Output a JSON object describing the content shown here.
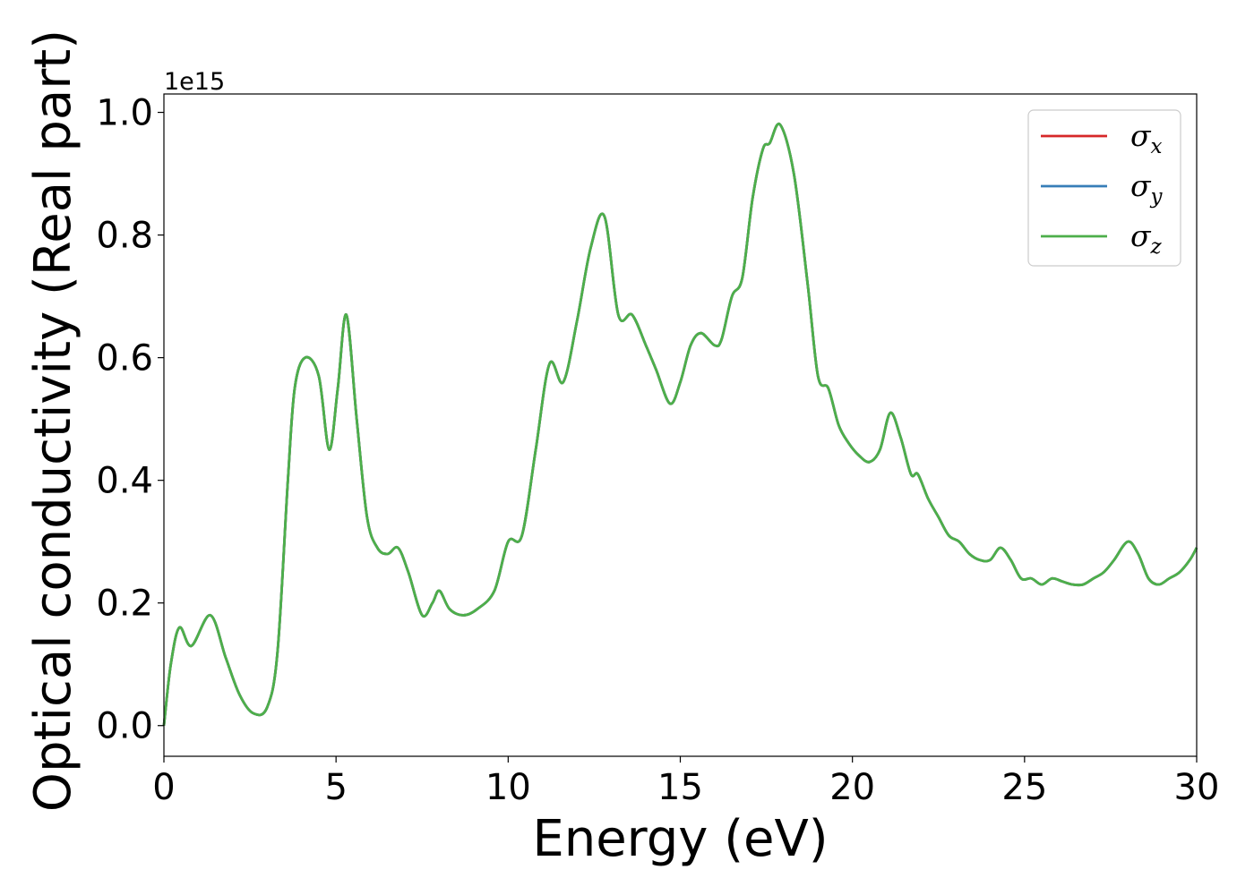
{
  "chart_data": {
    "type": "line",
    "xlabel": "Energy (eV)",
    "ylabel": "Optical conductivity (Real part)",
    "y_offset_text": "1e15",
    "xlim": [
      0,
      30
    ],
    "ylim": [
      -0.05,
      1.03
    ],
    "xticks": [
      0,
      5,
      10,
      15,
      20,
      25,
      30
    ],
    "xtick_labels": [
      "0",
      "5",
      "10",
      "15",
      "20",
      "25",
      "30"
    ],
    "yticks": [
      0.0,
      0.2,
      0.4,
      0.6,
      0.8,
      1.0
    ],
    "ytick_labels": [
      "0.0",
      "0.2",
      "0.4",
      "0.6",
      "0.8",
      "1.0"
    ],
    "grid": false,
    "legend_position": "top-right",
    "series": [
      {
        "name": "σ",
        "subscript": "x",
        "color": "#d62728",
        "ref": "z"
      },
      {
        "name": "σ",
        "subscript": "y",
        "color": "#377eb8",
        "ref": "z"
      },
      {
        "name": "σ",
        "subscript": "z",
        "color": "#4daf4a",
        "x": [
          0,
          0.2,
          0.45,
          0.8,
          1.35,
          1.8,
          2.2,
          2.6,
          3.0,
          3.3,
          3.6,
          3.8,
          4.1,
          4.5,
          4.8,
          5.05,
          5.3,
          5.6,
          5.9,
          6.2,
          6.5,
          6.8,
          7.1,
          7.5,
          7.8,
          8.0,
          8.3,
          8.7,
          9.1,
          9.6,
          10.0,
          10.4,
          10.8,
          11.2,
          11.6,
          12.0,
          12.4,
          12.8,
          13.2,
          13.6,
          14.0,
          14.3,
          14.7,
          15.0,
          15.3,
          15.6,
          16.0,
          16.2,
          16.5,
          16.8,
          17.1,
          17.4,
          17.6,
          17.9,
          18.3,
          18.7,
          19.0,
          19.3,
          19.6,
          19.9,
          20.2,
          20.5,
          20.8,
          21.1,
          21.4,
          21.7,
          21.9,
          22.2,
          22.5,
          22.8,
          23.1,
          23.4,
          23.7,
          24.0,
          24.3,
          24.6,
          24.9,
          25.2,
          25.5,
          25.8,
          26.1,
          26.4,
          26.7,
          27.0,
          27.3,
          27.6,
          28.0,
          28.3,
          28.6,
          28.9,
          29.2,
          29.5,
          29.8,
          30.0
        ],
        "y": [
          0.0,
          0.1,
          0.16,
          0.13,
          0.18,
          0.11,
          0.05,
          0.02,
          0.03,
          0.12,
          0.4,
          0.55,
          0.6,
          0.57,
          0.45,
          0.55,
          0.67,
          0.5,
          0.34,
          0.29,
          0.28,
          0.29,
          0.25,
          0.18,
          0.2,
          0.22,
          0.19,
          0.18,
          0.19,
          0.22,
          0.3,
          0.31,
          0.45,
          0.59,
          0.56,
          0.66,
          0.78,
          0.83,
          0.67,
          0.67,
          0.62,
          0.58,
          0.525,
          0.56,
          0.62,
          0.64,
          0.62,
          0.63,
          0.7,
          0.73,
          0.86,
          0.94,
          0.95,
          0.98,
          0.9,
          0.72,
          0.57,
          0.55,
          0.49,
          0.46,
          0.44,
          0.43,
          0.45,
          0.51,
          0.47,
          0.41,
          0.41,
          0.37,
          0.34,
          0.31,
          0.3,
          0.28,
          0.27,
          0.27,
          0.29,
          0.27,
          0.24,
          0.24,
          0.23,
          0.24,
          0.235,
          0.23,
          0.23,
          0.24,
          0.25,
          0.27,
          0.3,
          0.28,
          0.24,
          0.23,
          0.24,
          0.25,
          0.27,
          0.29
        ]
      }
    ]
  }
}
